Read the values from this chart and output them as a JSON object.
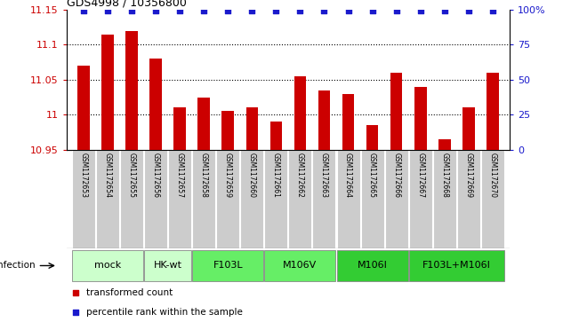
{
  "title": "GDS4998 / 10356800",
  "samples": [
    "GSM1172653",
    "GSM1172654",
    "GSM1172655",
    "GSM1172656",
    "GSM1172657",
    "GSM1172658",
    "GSM1172659",
    "GSM1172660",
    "GSM1172661",
    "GSM1172662",
    "GSM1172663",
    "GSM1172664",
    "GSM1172665",
    "GSM1172666",
    "GSM1172667",
    "GSM1172668",
    "GSM1172669",
    "GSM1172670"
  ],
  "bar_values": [
    11.07,
    11.115,
    11.12,
    11.08,
    11.01,
    11.025,
    11.005,
    11.01,
    10.99,
    11.055,
    11.035,
    11.03,
    10.985,
    11.06,
    11.04,
    10.965,
    11.01,
    11.06
  ],
  "ylim_left": [
    10.95,
    11.15
  ],
  "ylim_right": [
    0,
    100
  ],
  "yticks_left": [
    10.95,
    11.0,
    11.05,
    11.1,
    11.15
  ],
  "ytick_labels_left": [
    "10.95",
    "11",
    "11.05",
    "11.1",
    "11.15"
  ],
  "yticks_right": [
    0,
    25,
    50,
    75,
    100
  ],
  "ytick_labels_right": [
    "0",
    "25",
    "50",
    "75",
    "100%"
  ],
  "grid_yticks": [
    11.0,
    11.05,
    11.1
  ],
  "bar_color": "#cc0000",
  "percentile_color": "#1a1acc",
  "groups": [
    {
      "label": "mock",
      "start": 0,
      "end": 2,
      "color": "#ccffcc"
    },
    {
      "label": "HK-wt",
      "start": 3,
      "end": 4,
      "color": "#ccffcc"
    },
    {
      "label": "F103L",
      "start": 5,
      "end": 7,
      "color": "#66ee66"
    },
    {
      "label": "M106V",
      "start": 8,
      "end": 10,
      "color": "#66ee66"
    },
    {
      "label": "M106I",
      "start": 11,
      "end": 13,
      "color": "#33cc33"
    },
    {
      "label": "F103L+M106I",
      "start": 14,
      "end": 17,
      "color": "#33cc33"
    }
  ],
  "sample_box_color": "#cccccc",
  "infection_label": "infection",
  "legend_bar_label": "transformed count",
  "legend_perc_label": "percentile rank within the sample",
  "title_fontsize": 9,
  "tick_fontsize": 8,
  "sample_fontsize": 5.5,
  "group_fontsize": 8
}
